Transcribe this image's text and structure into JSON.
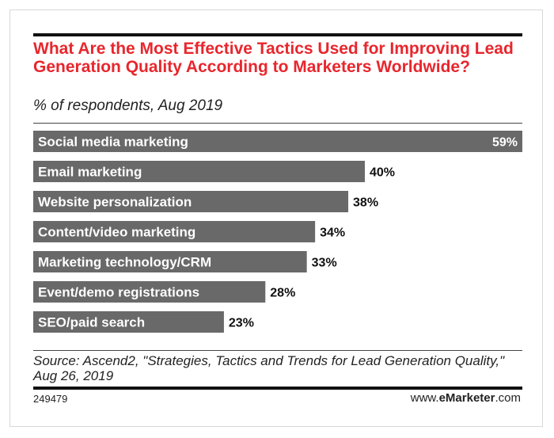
{
  "chart_data": {
    "type": "bar",
    "orientation": "horizontal",
    "title": "What Are the Most Effective Tactics Used for Improving Lead Generation Quality According to Marketers Worldwide?",
    "subtitle": "% of respondents, Aug 2019",
    "categories": [
      "Social media marketing",
      "Email marketing",
      "Website personalization",
      "Content/video marketing",
      "Marketing technology/CRM",
      "Event/demo registrations",
      "SEO/paid search"
    ],
    "values": [
      59,
      40,
      38,
      34,
      33,
      28,
      23
    ],
    "value_labels": [
      "59%",
      "40%",
      "38%",
      "34%",
      "33%",
      "28%",
      "23%"
    ],
    "xlim": [
      0,
      59
    ],
    "bar_color": "#696969",
    "grid": false
  },
  "source": "Source: Ascend2, \"Strategies, Tactics and Trends for Lead Generation Quality,\" Aug 26, 2019",
  "chart_id": "249479",
  "brand": {
    "prefix": "www.",
    "name": "eMarketer",
    "suffix": ".com"
  },
  "colors": {
    "title": "#e8262d",
    "rule": "#111111"
  }
}
